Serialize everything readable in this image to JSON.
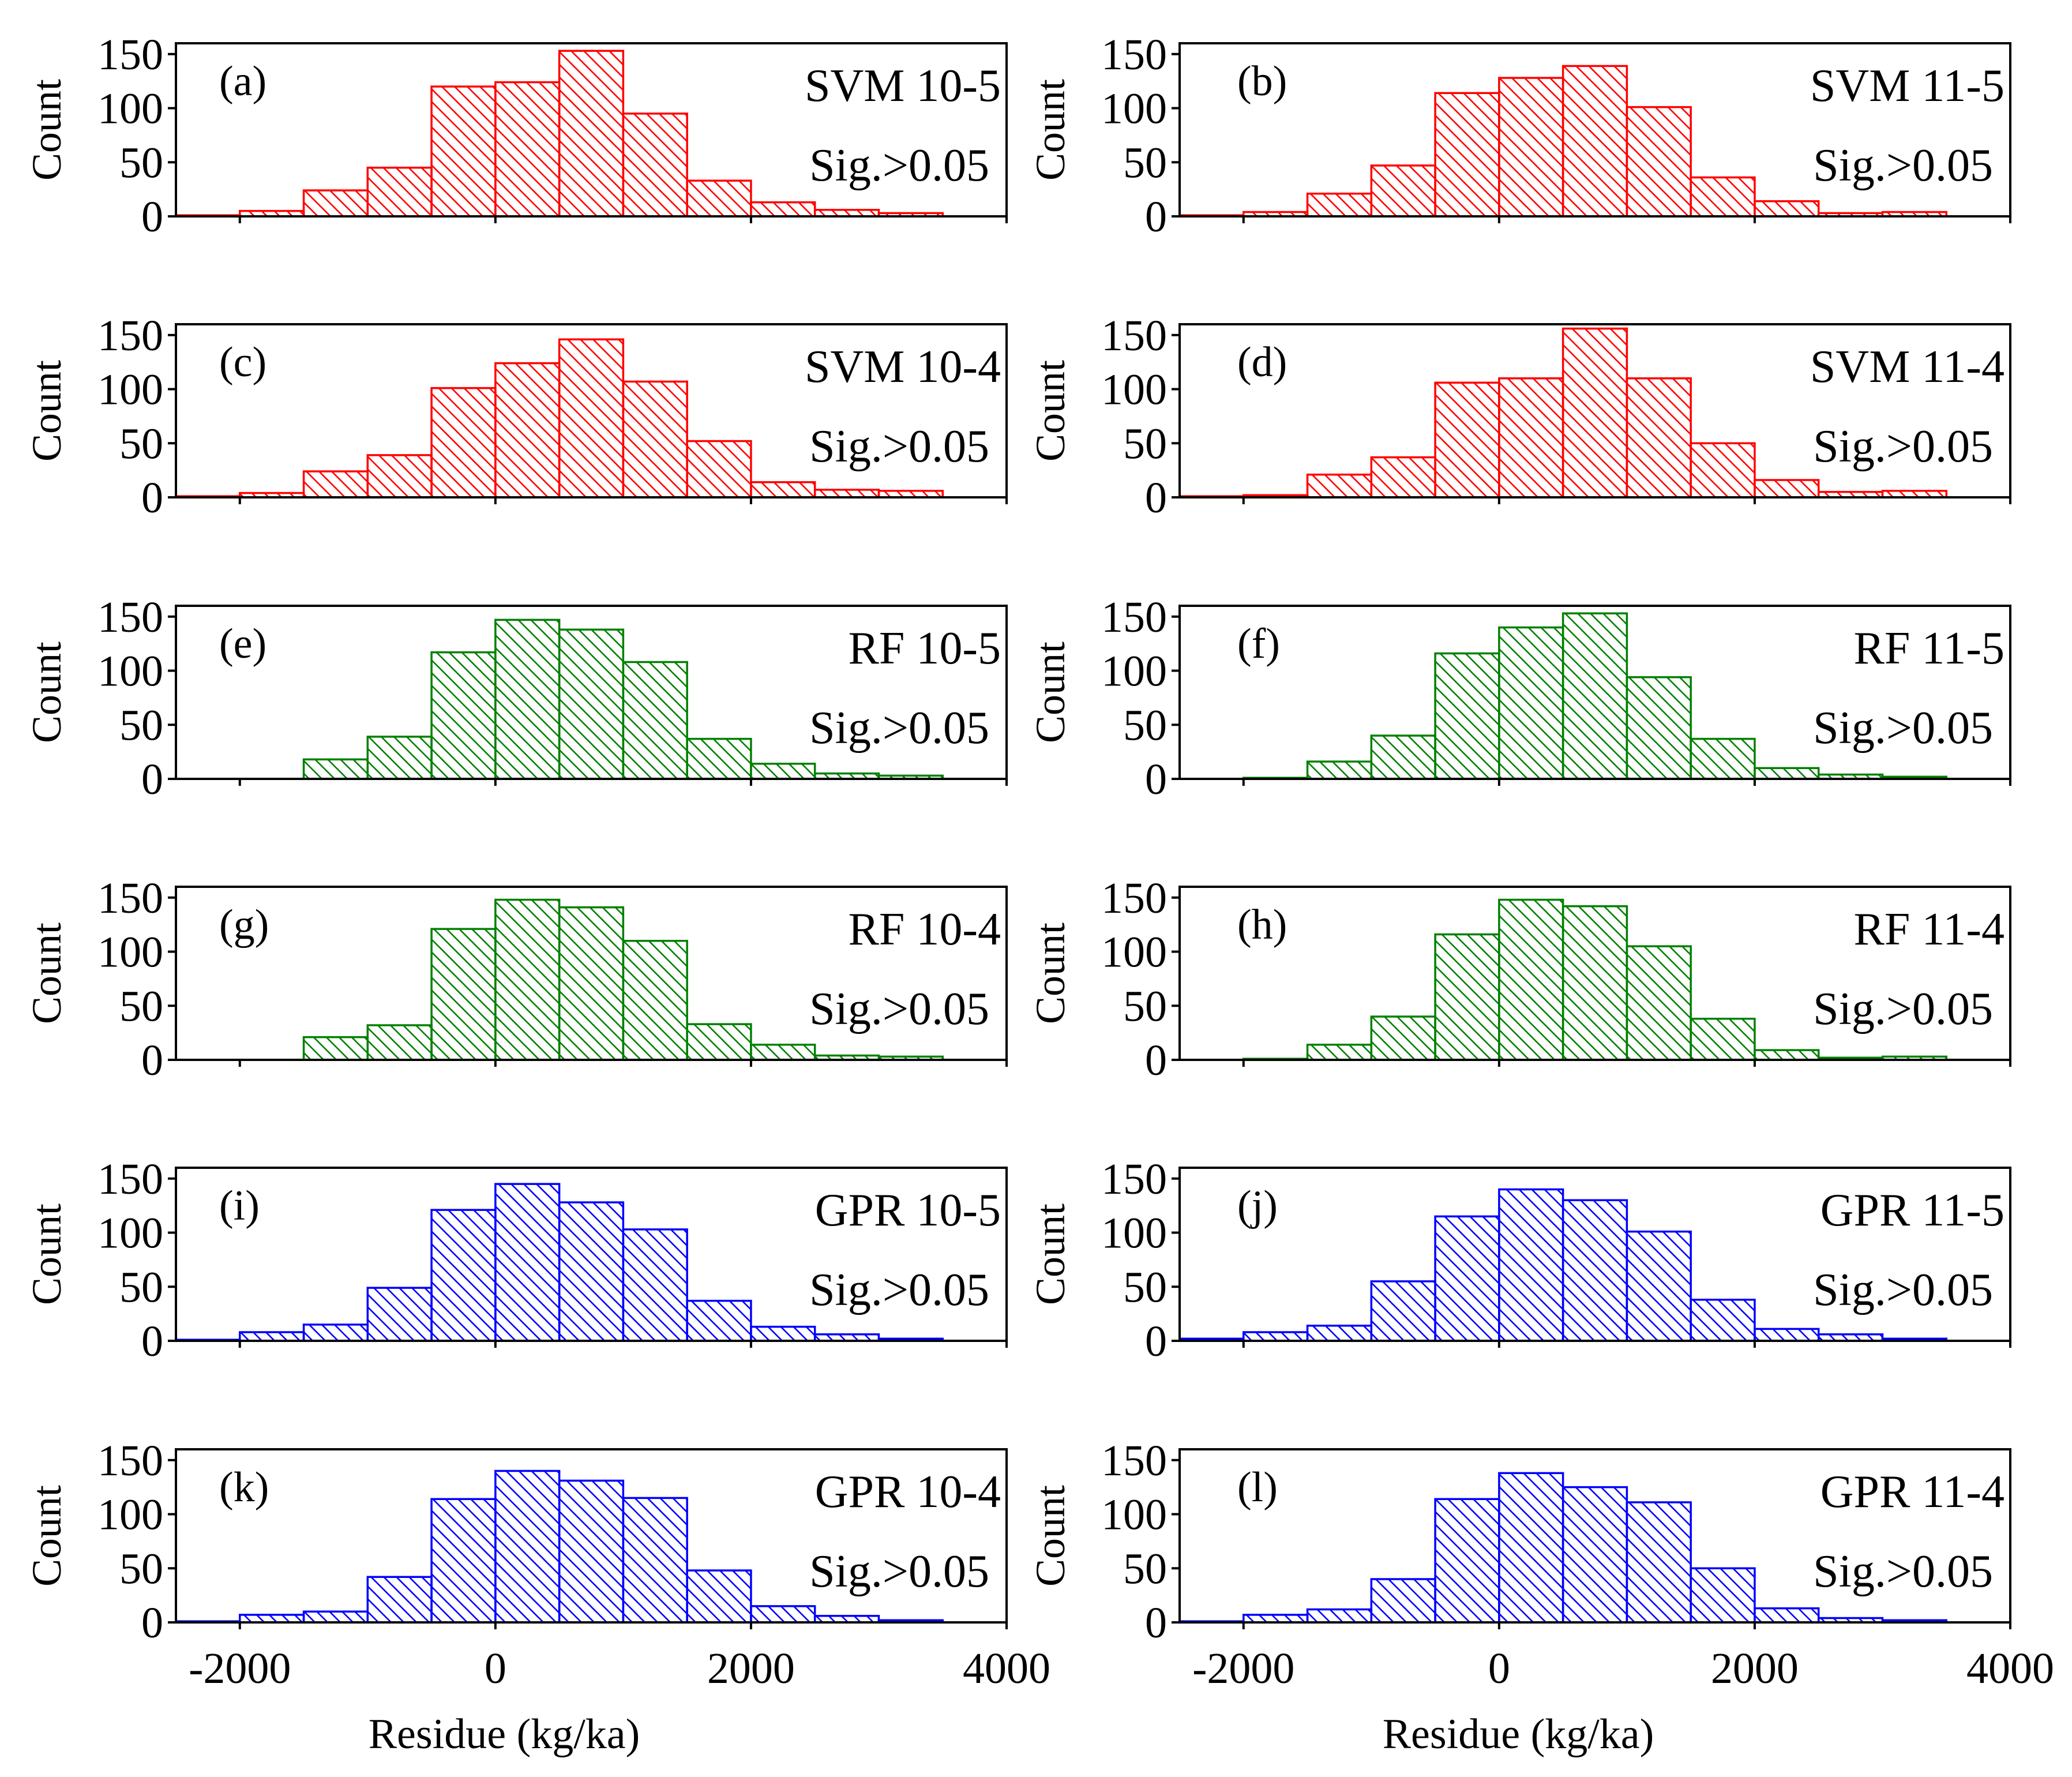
{
  "colors": {
    "svm": "#ff0000",
    "rf": "#008000",
    "gpr": "#0000ff",
    "axis": "#000000"
  },
  "axes": {
    "ylabel": "Count",
    "xlabel": "Residue (kg/ka)",
    "ylim": [
      0,
      160
    ],
    "xlim": [
      -2500,
      4000
    ],
    "yticks": [
      0,
      50,
      100,
      150
    ],
    "ytick_labels": [
      "0",
      "50",
      "100",
      "150"
    ],
    "xticks": [
      -2000,
      0,
      2000,
      4000
    ],
    "xtick_labels": [
      "-2000",
      "0",
      "2000",
      "4000"
    ],
    "bin_edges": [
      -2500,
      -2000,
      -1500,
      -1000,
      -500,
      0,
      500,
      1000,
      1500,
      2000,
      2500,
      3000,
      3500
    ]
  },
  "chart_data": [
    {
      "type": "bar",
      "panel": "(a)",
      "model": "SVM 10-5",
      "sig": "Sig.>0.05",
      "series": "svm",
      "values": [
        1,
        5,
        24,
        45,
        120,
        124,
        153,
        95,
        33,
        13,
        6,
        3
      ]
    },
    {
      "type": "bar",
      "panel": "(b)",
      "model": "SVM 11-5",
      "sig": "Sig.>0.05",
      "series": "svm",
      "values": [
        1,
        4,
        21,
        47,
        114,
        128,
        139,
        101,
        36,
        14,
        3,
        4
      ]
    },
    {
      "type": "bar",
      "panel": "(c)",
      "model": "SVM 10-4",
      "sig": "Sig.>0.05",
      "series": "svm",
      "values": [
        1,
        4,
        24,
        39,
        101,
        124,
        146,
        107,
        52,
        14,
        7,
        6
      ]
    },
    {
      "type": "bar",
      "panel": "(d)",
      "model": "SVM 11-4",
      "sig": "Sig.>0.05",
      "series": "svm",
      "values": [
        1,
        2,
        21,
        37,
        106,
        110,
        156,
        110,
        50,
        16,
        5,
        6
      ]
    },
    {
      "type": "bar",
      "panel": "(e)",
      "model": "RF 10-5",
      "sig": "Sig.>0.05",
      "series": "rf",
      "values": [
        0,
        0,
        18,
        39,
        117,
        147,
        138,
        108,
        37,
        14,
        5,
        3
      ]
    },
    {
      "type": "bar",
      "panel": "(f)",
      "model": "RF 11-5",
      "sig": "Sig.>0.05",
      "series": "rf",
      "values": [
        0,
        1,
        16,
        40,
        116,
        140,
        153,
        94,
        37,
        10,
        4,
        2
      ]
    },
    {
      "type": "bar",
      "panel": "(g)",
      "model": "RF 10-4",
      "sig": "Sig.>0.05",
      "series": "rf",
      "values": [
        0,
        0,
        21,
        32,
        121,
        148,
        141,
        110,
        33,
        14,
        4,
        3
      ]
    },
    {
      "type": "bar",
      "panel": "(h)",
      "model": "RF 11-4",
      "sig": "Sig.>0.05",
      "series": "rf",
      "values": [
        0,
        1,
        14,
        40,
        116,
        148,
        142,
        105,
        38,
        9,
        2,
        3
      ]
    },
    {
      "type": "bar",
      "panel": "(i)",
      "model": "GPR 10-5",
      "sig": "Sig.>0.05",
      "series": "gpr",
      "values": [
        1,
        8,
        15,
        49,
        121,
        145,
        128,
        103,
        37,
        13,
        6,
        2
      ]
    },
    {
      "type": "bar",
      "panel": "(j)",
      "model": "GPR 11-5",
      "sig": "Sig.>0.05",
      "series": "gpr",
      "values": [
        2,
        8,
        14,
        55,
        115,
        140,
        130,
        101,
        38,
        11,
        6,
        2
      ]
    },
    {
      "type": "bar",
      "panel": "(k)",
      "model": "GPR 10-4",
      "sig": "Sig.>0.05",
      "series": "gpr",
      "values": [
        1,
        7,
        10,
        42,
        114,
        140,
        131,
        115,
        48,
        15,
        6,
        2
      ]
    },
    {
      "type": "bar",
      "panel": "(l)",
      "model": "GPR 11-4",
      "sig": "Sig.>0.05",
      "series": "gpr",
      "values": [
        1,
        7,
        12,
        40,
        114,
        138,
        125,
        111,
        50,
        13,
        4,
        2
      ]
    }
  ]
}
